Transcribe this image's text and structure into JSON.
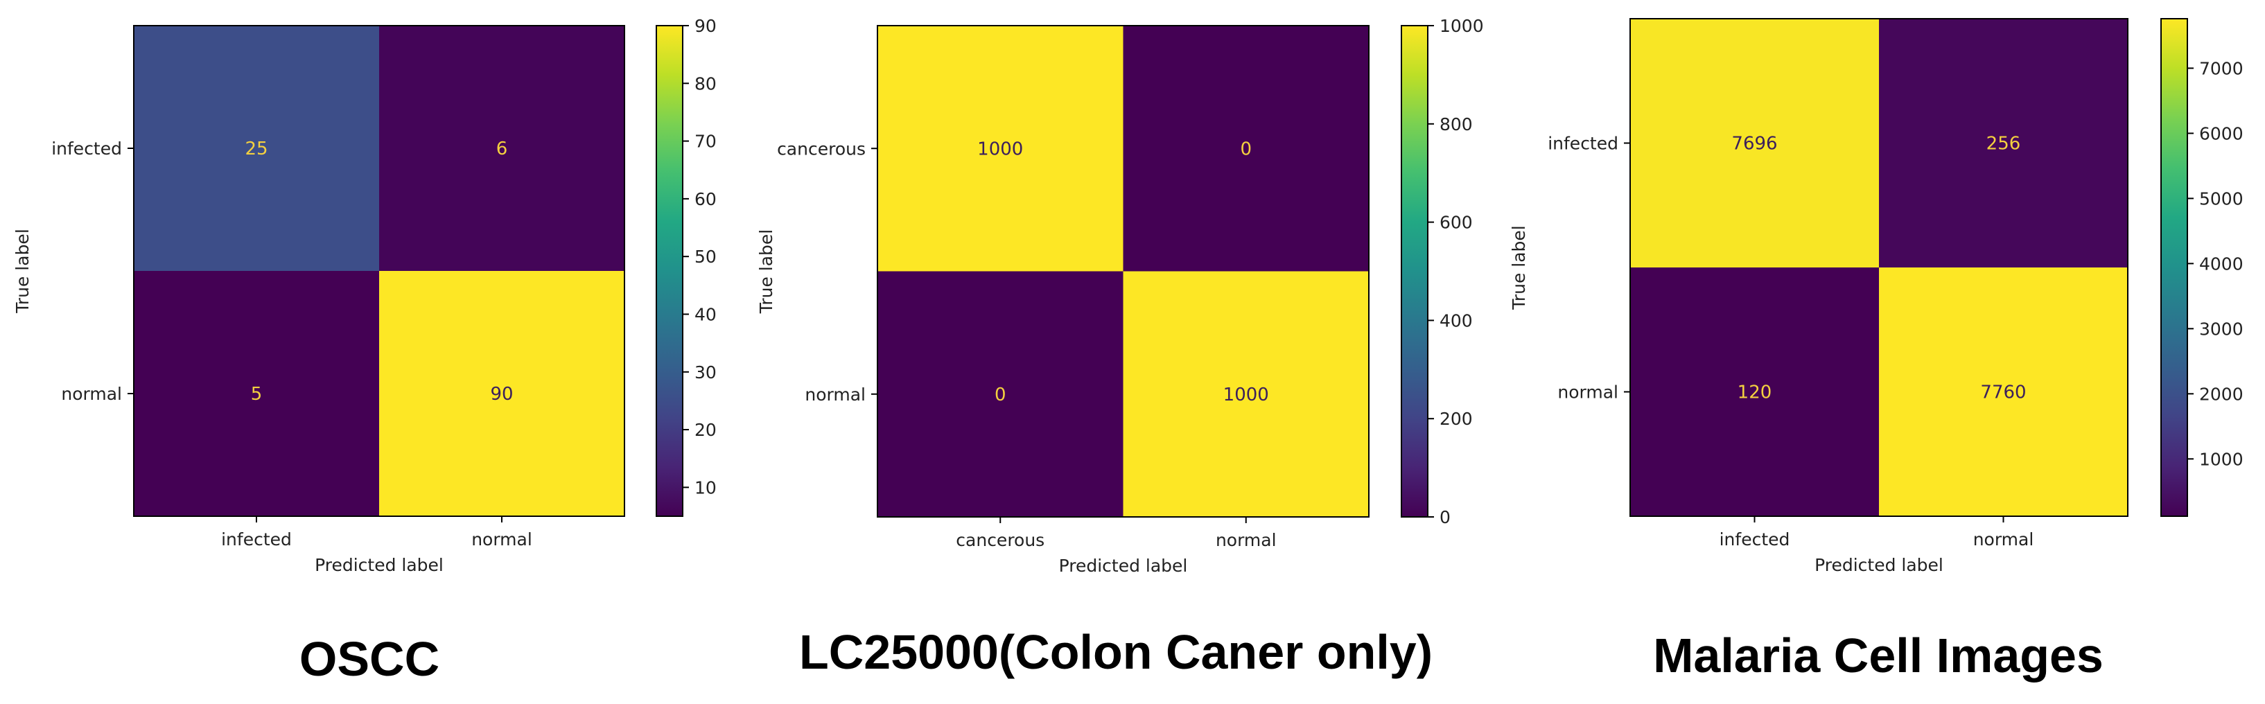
{
  "chart_data": [
    {
      "type": "heatmap",
      "title": "OSCC",
      "xlabel": "Predicted label",
      "ylabel": "True label",
      "x_categories": [
        "infected",
        "normal"
      ],
      "y_categories": [
        "infected",
        "normal"
      ],
      "values": [
        [
          25,
          6
        ],
        [
          5,
          90
        ]
      ],
      "colorbar": {
        "range": [
          5,
          90
        ],
        "ticks": [
          10,
          20,
          30,
          40,
          50,
          60,
          70,
          80,
          90
        ]
      },
      "colormap": "viridis"
    },
    {
      "type": "heatmap",
      "title": "LC25000(Colon Caner only)",
      "xlabel": "Predicted label",
      "ylabel": "True label",
      "x_categories": [
        "cancerous",
        "normal"
      ],
      "y_categories": [
        "cancerous",
        "normal"
      ],
      "values": [
        [
          1000,
          0
        ],
        [
          0,
          1000
        ]
      ],
      "colorbar": {
        "range": [
          0,
          1000
        ],
        "ticks": [
          0,
          200,
          400,
          600,
          800,
          1000
        ]
      },
      "colormap": "viridis"
    },
    {
      "type": "heatmap",
      "title": "Malaria Cell Images",
      "xlabel": "Predicted label",
      "ylabel": "True label",
      "x_categories": [
        "infected",
        "normal"
      ],
      "y_categories": [
        "infected",
        "normal"
      ],
      "values": [
        [
          7696,
          256
        ],
        [
          120,
          7760
        ]
      ],
      "colorbar": {
        "range": [
          120,
          7760
        ],
        "ticks": [
          1000,
          2000,
          3000,
          4000,
          5000,
          6000,
          7000
        ]
      },
      "colormap": "viridis"
    }
  ],
  "colors": {
    "low_text": "#f4d03f",
    "high_text": "#3b1f5c",
    "frame": "#000000"
  }
}
